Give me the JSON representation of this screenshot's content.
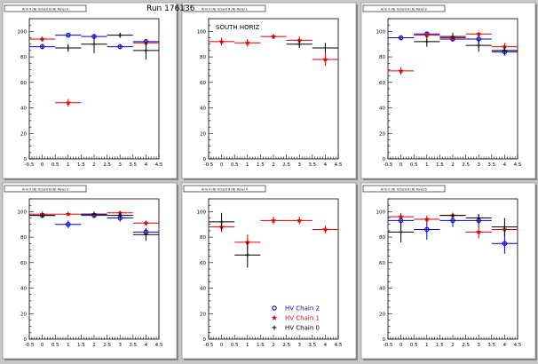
{
  "run_label": "Run 176136",
  "legend": {
    "entries": [
      {
        "name": "HV Chain 2",
        "marker": "circle",
        "color": "#0000dd"
      },
      {
        "name": "HV Chain 1",
        "marker": "star",
        "color": "#dd0000"
      },
      {
        "name": "HV Chain 0",
        "marker": "plus",
        "color": "#000000"
      }
    ]
  },
  "colors": {
    "chain2": "#0000dd",
    "chain1": "#dd0000",
    "chain0": "#000000",
    "background": "#c8c8c8",
    "pad": "#ffffff"
  },
  "chart_data": [
    {
      "type": "scatter",
      "panel_label": "Arm 0 (N) Octant 6 (N) Panel 0",
      "annotation": "",
      "xlim": [
        -0.5,
        4.5
      ],
      "ylim": [
        0,
        110
      ],
      "x_ticks": [
        "-0.5",
        "0",
        "0.5",
        "1",
        "1.5",
        "2",
        "2.5",
        "3",
        "3.5",
        "4",
        "4.5"
      ],
      "y_ticks": [
        "0",
        "20",
        "40",
        "60",
        "80",
        "100"
      ],
      "series": [
        {
          "name": "HV Chain 2",
          "points": [
            {
              "x": 0,
              "y": 88,
              "ey": 2
            },
            {
              "x": 1,
              "y": 97,
              "ey": 1
            },
            {
              "x": 2,
              "y": 96,
              "ey": 2
            },
            {
              "x": 3,
              "y": 88,
              "ey": 2
            },
            {
              "x": 4,
              "y": 92,
              "ey": 2
            }
          ]
        },
        {
          "name": "HV Chain 1",
          "points": [
            {
              "x": 0,
              "y": 94,
              "ey": 2
            },
            {
              "x": 1,
              "y": 44,
              "ey": 3
            },
            {
              "x": 4,
              "y": 91,
              "ey": 2
            }
          ]
        },
        {
          "name": "HV Chain 0",
          "points": [
            {
              "x": 1,
              "y": 87,
              "ey": 3
            },
            {
              "x": 2,
              "y": 90,
              "ey": 7
            },
            {
              "x": 3,
              "y": 97,
              "ey": 2
            },
            {
              "x": 4,
              "y": 85,
              "ey": 7
            }
          ]
        }
      ]
    },
    {
      "type": "scatter",
      "panel_label": "Arm 0 (N) Octant 6 (N) Panel 1",
      "annotation": "SOUTH HORIZ",
      "xlim": [
        -0.5,
        4.5
      ],
      "ylim": [
        0,
        110
      ],
      "x_ticks": [
        "-0.5",
        "0",
        "0.5",
        "1",
        "1.5",
        "2",
        "2.5",
        "3",
        "3.5",
        "4",
        "4.5"
      ],
      "y_ticks": [
        "0",
        "20",
        "40",
        "60",
        "80",
        "100"
      ],
      "series": [
        {
          "name": "HV Chain 2",
          "points": []
        },
        {
          "name": "HV Chain 1",
          "points": [
            {
              "x": 0,
              "y": 92,
              "ey": 3
            },
            {
              "x": 1,
              "y": 91,
              "ey": 3
            },
            {
              "x": 2,
              "y": 96,
              "ey": 2
            },
            {
              "x": 3,
              "y": 93,
              "ey": 3
            },
            {
              "x": 4,
              "y": 78,
              "ey": 5
            }
          ]
        },
        {
          "name": "HV Chain 0",
          "points": [
            {
              "x": 3,
              "y": 90,
              "ey": 3
            },
            {
              "x": 4,
              "y": 87,
              "ey": 4
            }
          ]
        }
      ]
    },
    {
      "type": "scatter",
      "panel_label": "Arm 0 (N) Octant 6 (N) Panel 2",
      "annotation": "",
      "xlim": [
        -0.5,
        4.5
      ],
      "ylim": [
        0,
        110
      ],
      "x_ticks": [
        "-0.5",
        "0",
        "0.5",
        "1",
        "1.5",
        "2",
        "2.5",
        "3",
        "3.5",
        "4",
        "4.5"
      ],
      "y_ticks": [
        "0",
        "20",
        "40",
        "60",
        "80",
        "100"
      ],
      "series": [
        {
          "name": "HV Chain 2",
          "points": [
            {
              "x": 0,
              "y": 95,
              "ey": 2
            },
            {
              "x": 1,
              "y": 98,
              "ey": 2
            },
            {
              "x": 2,
              "y": 94,
              "ey": 2
            },
            {
              "x": 3,
              "y": 94,
              "ey": 3
            },
            {
              "x": 4,
              "y": 84,
              "ey": 3
            }
          ]
        },
        {
          "name": "HV Chain 1",
          "points": [
            {
              "x": 0,
              "y": 69,
              "ey": 3
            },
            {
              "x": 1,
              "y": 97,
              "ey": 2
            },
            {
              "x": 2,
              "y": 95,
              "ey": 2
            },
            {
              "x": 3,
              "y": 98,
              "ey": 1
            },
            {
              "x": 4,
              "y": 88,
              "ey": 3
            }
          ]
        },
        {
          "name": "HV Chain 0",
          "points": [
            {
              "x": 1,
              "y": 92,
              "ey": 4
            },
            {
              "x": 2,
              "y": 96,
              "ey": 3
            },
            {
              "x": 3,
              "y": 89,
              "ey": 5
            },
            {
              "x": 4,
              "y": 85,
              "ey": 3
            }
          ]
        }
      ]
    },
    {
      "type": "scatter",
      "panel_label": "Arm 0 (N) Octant 6 (N) Panel 3",
      "annotation": "",
      "xlim": [
        -0.5,
        4.5
      ],
      "ylim": [
        0,
        110
      ],
      "x_ticks": [
        "-0.5",
        "0",
        "0.5",
        "1",
        "1.5",
        "2",
        "2.5",
        "3",
        "3.5",
        "4",
        "4.5"
      ],
      "y_ticks": [
        "0",
        "20",
        "40",
        "60",
        "80",
        "100"
      ],
      "series": [
        {
          "name": "HV Chain 2",
          "points": [
            {
              "x": 0,
              "y": 97,
              "ey": 2
            },
            {
              "x": 1,
              "y": 90,
              "ey": 3
            },
            {
              "x": 2,
              "y": 97,
              "ey": 2
            },
            {
              "x": 3,
              "y": 95,
              "ey": 3
            },
            {
              "x": 4,
              "y": 84,
              "ey": 3
            }
          ]
        },
        {
          "name": "HV Chain 1",
          "points": [
            {
              "x": 0,
              "y": 98,
              "ey": 2
            },
            {
              "x": 1,
              "y": 98,
              "ey": 1
            },
            {
              "x": 2,
              "y": 98,
              "ey": 1
            },
            {
              "x": 3,
              "y": 99,
              "ey": 1
            },
            {
              "x": 4,
              "y": 91,
              "ey": 2
            }
          ]
        },
        {
          "name": "HV Chain 0",
          "points": [
            {
              "x": 0,
              "y": 97,
              "ey": 2
            },
            {
              "x": 2,
              "y": 98,
              "ey": 2
            },
            {
              "x": 3,
              "y": 97,
              "ey": 2
            },
            {
              "x": 4,
              "y": 82,
              "ey": 5
            }
          ]
        }
      ]
    },
    {
      "type": "scatter",
      "panel_label": "Arm 0 (N) Octant 6 (N) Panel 4",
      "annotation": "",
      "xlim": [
        -0.5,
        4.5
      ],
      "ylim": [
        0,
        110
      ],
      "x_ticks": [
        "-0.5",
        "0",
        "0.5",
        "1",
        "1.5",
        "2",
        "2.5",
        "3",
        "3.5",
        "4",
        "4.5"
      ],
      "y_ticks": [
        "0",
        "20",
        "40",
        "60",
        "80",
        "100"
      ],
      "series": [
        {
          "name": "HV Chain 2",
          "points": []
        },
        {
          "name": "HV Chain 1",
          "points": [
            {
              "x": 0,
              "y": 88,
              "ey": 4
            },
            {
              "x": 1,
              "y": 76,
              "ey": 6
            },
            {
              "x": 2,
              "y": 93,
              "ey": 3
            },
            {
              "x": 3,
              "y": 93,
              "ey": 3
            },
            {
              "x": 4,
              "y": 86,
              "ey": 3
            }
          ]
        },
        {
          "name": "HV Chain 0",
          "points": [
            {
              "x": 0,
              "y": 92,
              "ey": 7
            },
            {
              "x": 1,
              "y": 66,
              "ey": 10
            }
          ]
        }
      ]
    },
    {
      "type": "scatter",
      "panel_label": "Arm 0 (N) Octant 6 (N) Panel 5",
      "annotation": "",
      "xlim": [
        -0.5,
        4.5
      ],
      "ylim": [
        0,
        110
      ],
      "x_ticks": [
        "-0.5",
        "0",
        "0.5",
        "1",
        "1.5",
        "2",
        "2.5",
        "3",
        "3.5",
        "4",
        "4.5"
      ],
      "y_ticks": [
        "0",
        "20",
        "40",
        "60",
        "80",
        "100"
      ],
      "series": [
        {
          "name": "HV Chain 2",
          "points": [
            {
              "x": 0,
              "y": 93,
              "ey": 5
            },
            {
              "x": 1,
              "y": 86,
              "ey": 8
            },
            {
              "x": 2,
              "y": 93,
              "ey": 5
            },
            {
              "x": 3,
              "y": 93,
              "ey": 5
            },
            {
              "x": 4,
              "y": 75,
              "ey": 8
            }
          ]
        },
        {
          "name": "HV Chain 1",
          "points": [
            {
              "x": 0,
              "y": 96,
              "ey": 3
            },
            {
              "x": 1,
              "y": 94,
              "ey": 3
            },
            {
              "x": 2,
              "y": 97,
              "ey": 2
            },
            {
              "x": 3,
              "y": 84,
              "ey": 5
            },
            {
              "x": 4,
              "y": 86,
              "ey": 4
            }
          ]
        },
        {
          "name": "HV Chain 0",
          "points": [
            {
              "x": 0,
              "y": 84,
              "ey": 8
            },
            {
              "x": 2,
              "y": 97,
              "ey": 2
            },
            {
              "x": 3,
              "y": 95,
              "ey": 3
            },
            {
              "x": 4,
              "y": 88,
              "ey": 7
            }
          ]
        }
      ]
    }
  ]
}
